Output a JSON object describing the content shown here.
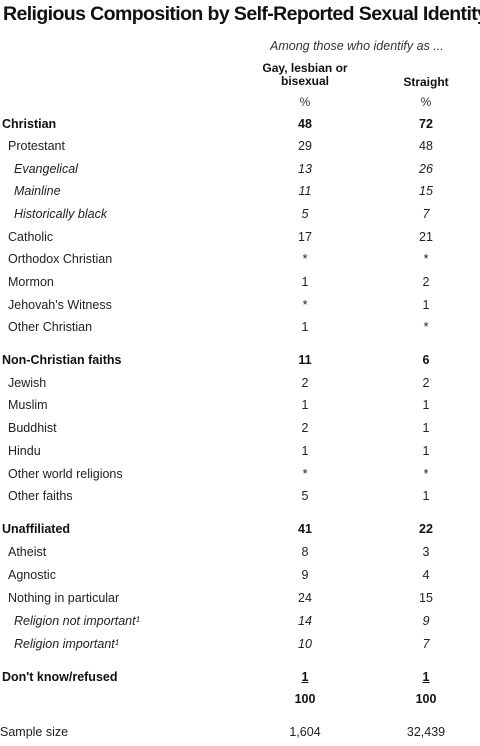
{
  "title": "Religious Composition by Self-Reported Sexual Identity",
  "subtitle": "Among those who identify as ...",
  "columns": [
    {
      "line1": "Gay, lesbian or",
      "line2": "bisexual",
      "unit": "%"
    },
    {
      "line1": "Straight",
      "line2": "",
      "unit": "%"
    }
  ],
  "rows": [
    {
      "label": "Christian",
      "v1": "48",
      "v2": "72"
    },
    {
      "label": "Protestant",
      "v1": "29",
      "v2": "48"
    },
    {
      "label": "Evangelical",
      "v1": "13",
      "v2": "26"
    },
    {
      "label": "Mainline",
      "v1": "11",
      "v2": "15"
    },
    {
      "label": "Historically black",
      "v1": "5",
      "v2": "7"
    },
    {
      "label": "Catholic",
      "v1": "17",
      "v2": "21"
    },
    {
      "label": "Orthodox Christian",
      "v1": "*",
      "v2": "*"
    },
    {
      "label": "Mormon",
      "v1": "1",
      "v2": "2"
    },
    {
      "label": "Jehovah's Witness",
      "v1": "*",
      "v2": "1"
    },
    {
      "label": "Other Christian",
      "v1": "1",
      "v2": "*"
    },
    {
      "label": "Non-Christian faiths",
      "v1": "11",
      "v2": "6"
    },
    {
      "label": "Jewish",
      "v1": "2",
      "v2": "2"
    },
    {
      "label": "Muslim",
      "v1": "1",
      "v2": "1"
    },
    {
      "label": "Buddhist",
      "v1": "2",
      "v2": "1"
    },
    {
      "label": "Hindu",
      "v1": "1",
      "v2": "1"
    },
    {
      "label": "Other world religions",
      "v1": "*",
      "v2": "*"
    },
    {
      "label": "Other faiths",
      "v1": "5",
      "v2": "1"
    },
    {
      "label": "Unaffiliated",
      "v1": "41",
      "v2": "22"
    },
    {
      "label": "Atheist",
      "v1": "8",
      "v2": "3"
    },
    {
      "label": "Agnostic",
      "v1": "9",
      "v2": "4"
    },
    {
      "label": "Nothing in particular",
      "v1": "24",
      "v2": "15"
    },
    {
      "label": "Religion not important¹",
      "v1": "14",
      "v2": "9"
    },
    {
      "label": "Religion important¹",
      "v1": "10",
      "v2": "7"
    },
    {
      "label": "Don't know/refused",
      "v1": "1",
      "v2": "1"
    }
  ],
  "total": {
    "v1": "100",
    "v2": "100"
  },
  "sample_size": {
    "label": "Sample size",
    "v1": "1,604",
    "v2": "32,439"
  }
}
